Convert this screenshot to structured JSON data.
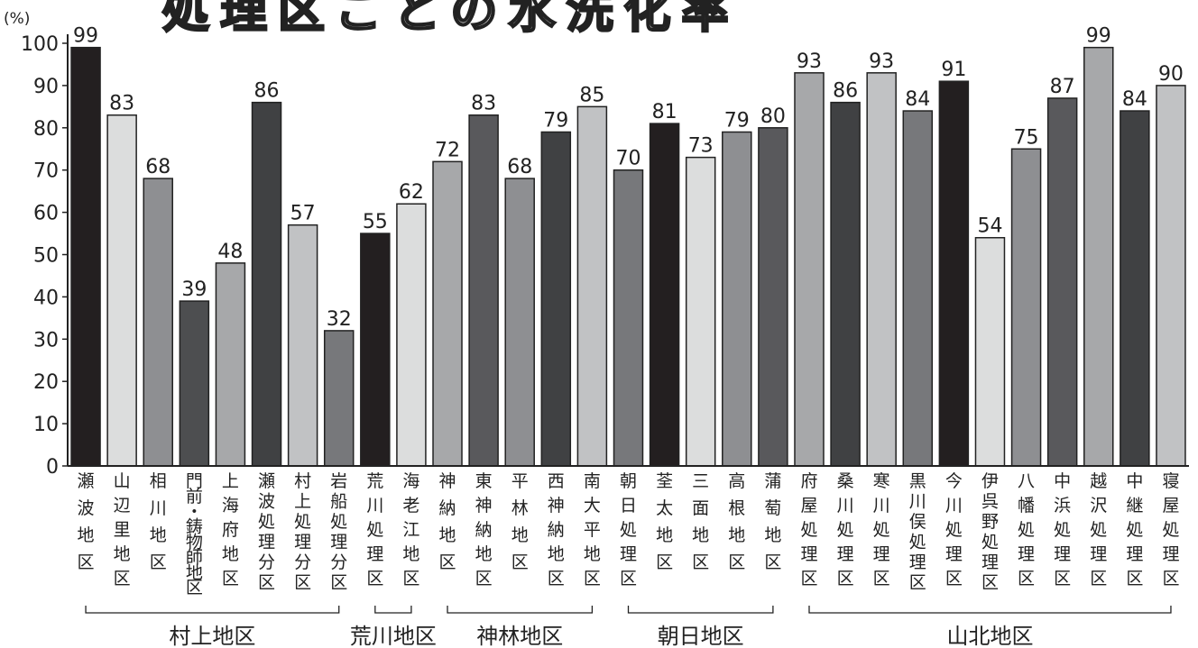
{
  "chart_data": {
    "type": "bar",
    "title": "処理区ごとの水洗化率",
    "ylabel": "(%)",
    "ylim": [
      0,
      100
    ],
    "yticks": [
      0,
      10,
      20,
      30,
      40,
      50,
      60,
      70,
      80,
      90,
      100
    ],
    "categories": [
      "瀬波地区",
      "山辺里地区",
      "相川地区",
      "門前・鋳物師地区",
      "上海府地区",
      "瀬波処理分区",
      "村上処理分区",
      "岩船処理分区",
      "荒川処理区",
      "海老江地区",
      "神納地区",
      "東神納地区",
      "平林地区",
      "西神納地区",
      "南大平地区",
      "朝日処理区",
      "荃太地区",
      "三面地区",
      "高根地区",
      "蒲萄地区",
      "府屋処理区",
      "桑川処理区",
      "寒川処理区",
      "黒川俣処理区",
      "今川処理区",
      "伊呉野処理区",
      "八幡処理区",
      "中浜処理区",
      "越沢処理区",
      "中継処理区",
      "寝屋処理区"
    ],
    "values": [
      99,
      83,
      68,
      39,
      48,
      86,
      57,
      32,
      55,
      62,
      72,
      83,
      68,
      79,
      85,
      70,
      81,
      73,
      79,
      80,
      93,
      86,
      93,
      84,
      91,
      54,
      75,
      87,
      99,
      84,
      90
    ],
    "bar_colors": [
      "#231f20",
      "#dcdddd",
      "#8e8f92",
      "#4d4e50",
      "#a7a8aa",
      "#404143",
      "#c1c2c4",
      "#77787b",
      "#231f20",
      "#dcdddd",
      "#a7a8aa",
      "#59595c",
      "#8e8f92",
      "#404143",
      "#c1c2c4",
      "#77787b",
      "#231f20",
      "#dcdddd",
      "#8e8f92",
      "#59595c",
      "#a7a8aa",
      "#404143",
      "#c1c2c4",
      "#77787b",
      "#231f20",
      "#dcdddd",
      "#8e8f92",
      "#59595c",
      "#a7a8aa",
      "#404143",
      "#c1c2c4"
    ],
    "groups": [
      {
        "name": "村上地区",
        "start": 0,
        "end": 7
      },
      {
        "name": "荒川地区",
        "start": 8,
        "end": 9
      },
      {
        "name": "神林地区",
        "start": 10,
        "end": 14
      },
      {
        "name": "朝日地区",
        "start": 15,
        "end": 19
      },
      {
        "name": "山北地区",
        "start": 20,
        "end": 30
      }
    ]
  }
}
